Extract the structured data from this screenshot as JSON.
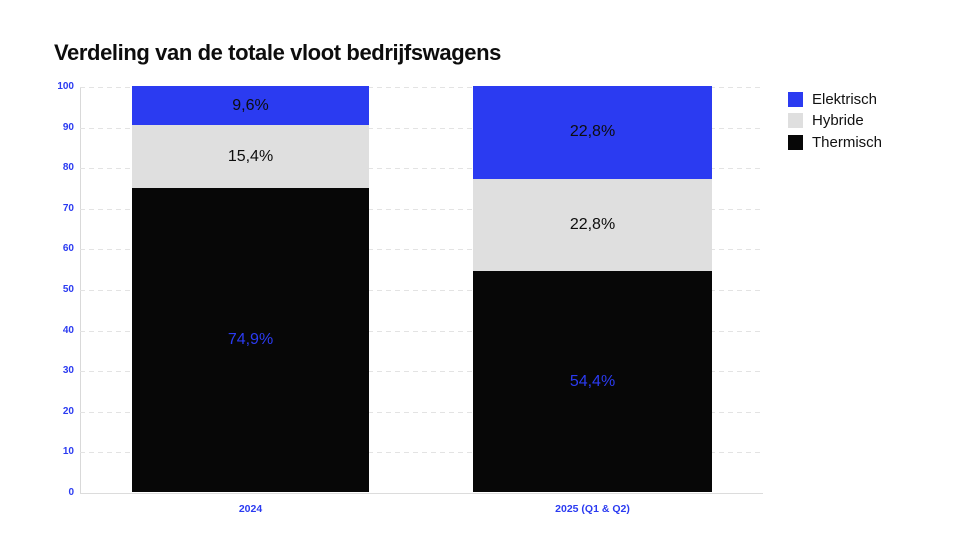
{
  "title": "Verdeling van de totale vloot bedrijfswagens",
  "colors": {
    "electric_blue": "#2b3bf1",
    "hybrid_gray": "#dfdfdf",
    "thermal_black": "#070707",
    "axis_label_blue": "#2b3bf1",
    "gridline_gray": "#e3e3e3",
    "title_black": "#0d0d0d",
    "background": "#ffffff"
  },
  "chart_data": {
    "type": "bar",
    "stacked": true,
    "title": "Verdeling van de totale vloot bedrijfswagens",
    "categories": [
      "2024",
      "2025 (Q1 & Q2)"
    ],
    "series": [
      {
        "name": "Elektrisch",
        "color": "#2b3bf1",
        "values": [
          9.6,
          22.8
        ],
        "data_labels": [
          "9,6%",
          "22,8%"
        ],
        "label_color": "#0d0d0d"
      },
      {
        "name": "Hybride",
        "color": "#dfdfdf",
        "values": [
          15.4,
          22.8
        ],
        "data_labels": [
          "15,4%",
          "22,8%"
        ],
        "label_color": "#0d0d0d"
      },
      {
        "name": "Thermisch",
        "color": "#070707",
        "values": [
          74.9,
          54.4
        ],
        "data_labels": [
          "74,9%",
          "54,4%"
        ],
        "label_color": "#2b3bf1"
      }
    ],
    "xlabel": "",
    "ylabel": "",
    "ylim": [
      0,
      100
    ],
    "yticks": [
      0,
      10,
      20,
      30,
      40,
      50,
      60,
      70,
      80,
      90,
      100
    ],
    "grid": "horizontal-dashed",
    "legend_position": "top-right",
    "legend_entries": [
      "Elektrisch",
      "Hybride",
      "Thermisch"
    ]
  }
}
